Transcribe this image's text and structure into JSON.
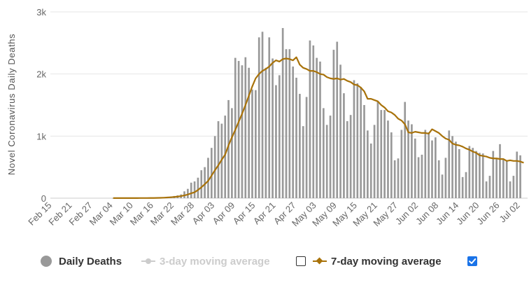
{
  "chart_data": {
    "type": "bar",
    "ylabel": "Novel Coronavirus Daily Deaths",
    "xlabel": "",
    "ylim": [
      0,
      3000
    ],
    "y_ticks": [
      {
        "value": 0,
        "label": "0"
      },
      {
        "value": 1000,
        "label": "1k"
      },
      {
        "value": 2000,
        "label": "2k"
      },
      {
        "value": 3000,
        "label": "3k"
      }
    ],
    "x_tick_labels": [
      "Feb 15",
      "Feb 21",
      "Feb 27",
      "Mar 04",
      "Mar 10",
      "Mar 16",
      "Mar 22",
      "Mar 28",
      "Apr 03",
      "Apr 09",
      "Apr 15",
      "Apr 21",
      "Apr 27",
      "May 03",
      "May 09",
      "May 15",
      "May 21",
      "May 27",
      "Jun 02",
      "Jun 08",
      "Jun 14",
      "Jun 20",
      "Jun 26",
      "Jul 02"
    ],
    "grid": true,
    "legend_position": "bottom",
    "series": [
      {
        "name": "Daily Deaths",
        "type": "bar",
        "values": [
          0,
          0,
          0,
          0,
          0,
          0,
          0,
          0,
          0,
          0,
          0,
          0,
          0,
          0,
          0,
          0,
          0,
          0,
          1,
          1,
          1,
          1,
          1,
          1,
          1,
          1,
          2,
          2,
          3,
          4,
          5,
          8,
          10,
          12,
          17,
          25,
          35,
          45,
          60,
          110,
          150,
          250,
          270,
          330,
          450,
          500,
          650,
          810,
          1000,
          1240,
          1200,
          1330,
          1580,
          1450,
          2260,
          2210,
          2140,
          2270,
          2100,
          1750,
          1740,
          2590,
          2680,
          2100,
          2590,
          2250,
          1820,
          1980,
          2740,
          2400,
          2400,
          2120,
          1940,
          1680,
          1160,
          1630,
          2540,
          2460,
          2260,
          2200,
          1450,
          1180,
          1330,
          2390,
          2520,
          2150,
          1690,
          1240,
          1340,
          1900,
          1850,
          1790,
          1500,
          1090,
          880,
          1180,
          1560,
          1420,
          1420,
          1250,
          1060,
          610,
          640,
          1100,
          1550,
          1250,
          1190,
          960,
          660,
          700,
          1100,
          1060,
          930,
          980,
          610,
          380,
          650,
          1090,
          1000,
          910,
          790,
          340,
          420,
          840,
          810,
          760,
          730,
          720,
          270,
          360,
          760,
          640,
          870,
          620,
          600,
          270,
          360,
          750,
          690
        ]
      },
      {
        "name": "3-day moving average",
        "type": "line",
        "visible": false,
        "color": "#cccccc"
      },
      {
        "name": "7-day moving average",
        "type": "line",
        "visible": true,
        "color": "#a8720a",
        "values": [
          null,
          null,
          null,
          null,
          null,
          null,
          null,
          null,
          null,
          null,
          null,
          null,
          null,
          null,
          null,
          null,
          null,
          null,
          1,
          1,
          1,
          1,
          1,
          1,
          1,
          1,
          2,
          2,
          2,
          3,
          3,
          4,
          6,
          8,
          11,
          15,
          20,
          25,
          33,
          45,
          59,
          78,
          95,
          132,
          175,
          225,
          278,
          363,
          450,
          530,
          620,
          700,
          850,
          980,
          1100,
          1230,
          1360,
          1500,
          1650,
          1800,
          1930,
          2000,
          2050,
          2080,
          2120,
          2180,
          2220,
          2200,
          2240,
          2250,
          2240,
          2220,
          2270,
          2150,
          2100,
          2080,
          2050,
          2050,
          2030,
          2000,
          1990,
          1950,
          1930,
          1920,
          1930,
          1910,
          1920,
          1890,
          1870,
          1830,
          1820,
          1780,
          1720,
          1600,
          1600,
          1580,
          1560,
          1500,
          1460,
          1400,
          1380,
          1340,
          1280,
          1250,
          1190,
          1060,
          1050,
          1070,
          1060,
          1050,
          1050,
          1040,
          1110,
          1080,
          1050,
          1000,
          960,
          940,
          880,
          860,
          850,
          830,
          800,
          780,
          750,
          730,
          690,
          680,
          670,
          650,
          640,
          640,
          630,
          630,
          600,
          610,
          600,
          600,
          590,
          570
        ]
      }
    ]
  },
  "legend": {
    "items": [
      {
        "label": "Daily Deaths",
        "color": "#999999",
        "text_color": "#333333",
        "marker": "circle",
        "checkbox": false
      },
      {
        "label": "3-day moving average",
        "color": "#cccccc",
        "text_color": "#cccccc",
        "marker": "circle",
        "checkbox": "unchecked"
      },
      {
        "label": "7-day moving average",
        "color": "#a8720a",
        "text_color": "#333333",
        "marker": "diamond",
        "checkbox": "checked"
      }
    ]
  },
  "colors": {
    "bar": "#999999",
    "line": "#a8720a",
    "grid": "#e6e6e6",
    "axis_text": "#666666",
    "checkbox_on": "#1a73e8"
  }
}
